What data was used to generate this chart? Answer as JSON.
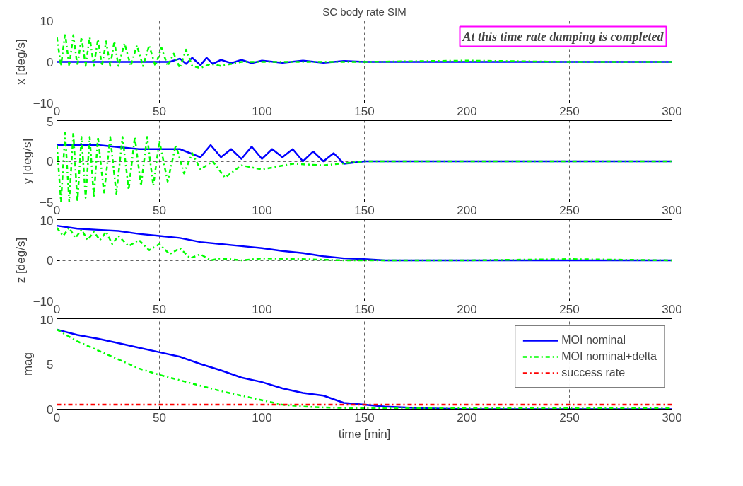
{
  "chart_data": [
    {
      "type": "line",
      "title": "SC body rate SIM",
      "ylabel": "x [deg/s]",
      "xlim": [
        0,
        300
      ],
      "xticks": [
        0,
        50,
        100,
        150,
        200,
        250,
        300
      ],
      "ylim": [
        -10,
        10
      ],
      "yticks": [
        -10,
        0,
        10
      ],
      "grid": true,
      "annotations": [
        "At this time rate damping is completed"
      ],
      "series": [
        {
          "color": "#0000ff",
          "line_style": "solid",
          "x": [
            0,
            20,
            40,
            55,
            60,
            63,
            66,
            70,
            73,
            76,
            80,
            85,
            90,
            95,
            100,
            110,
            120,
            130,
            140,
            150,
            160,
            200,
            300
          ],
          "values": [
            0,
            0,
            0,
            0,
            0.8,
            -0.5,
            1,
            -0.8,
            1,
            -0.5,
            0.5,
            -0.3,
            0.5,
            -0.3,
            0.3,
            -0.2,
            0.3,
            -0.2,
            0.2,
            0,
            0,
            0,
            0
          ]
        },
        {
          "color": "#00ff00",
          "line_style": "dashed",
          "x": [
            0,
            2,
            4,
            6,
            8,
            10,
            12,
            14,
            16,
            18,
            20,
            22,
            24,
            26,
            28,
            30,
            33,
            36,
            39,
            42,
            45,
            48,
            51,
            54,
            57,
            60,
            63,
            66,
            70,
            75,
            80,
            90,
            100,
            120,
            150,
            200,
            250,
            300
          ],
          "values": [
            6,
            -1,
            7,
            -1,
            6.5,
            -1,
            6,
            -1,
            6,
            -1,
            5.5,
            -1,
            5,
            -1,
            5,
            -1,
            4.5,
            -1,
            4,
            -1,
            4,
            -1,
            3.5,
            -1,
            2,
            -1.5,
            3,
            -1,
            -1.5,
            -0.5,
            -1,
            0,
            0,
            0,
            0,
            0.3,
            0,
            0
          ]
        }
      ]
    },
    {
      "type": "line",
      "ylabel": "y [deg/s]",
      "xlim": [
        0,
        300
      ],
      "xticks": [
        0,
        50,
        100,
        150,
        200,
        250,
        300
      ],
      "ylim": [
        -5,
        5
      ],
      "yticks": [
        -5,
        0,
        5
      ],
      "grid": true,
      "series": [
        {
          "color": "#0000ff",
          "line_style": "solid",
          "x": [
            0,
            20,
            40,
            60,
            70,
            75,
            80,
            85,
            90,
            95,
            100,
            105,
            110,
            115,
            120,
            125,
            130,
            135,
            140,
            150,
            160,
            200,
            300
          ],
          "values": [
            2,
            2,
            1.5,
            1.5,
            0.5,
            2,
            0.5,
            1.5,
            0.3,
            1.8,
            0.3,
            1.5,
            0.5,
            1.5,
            0,
            1.2,
            0,
            1,
            -0.3,
            0,
            0,
            0,
            0
          ]
        },
        {
          "color": "#00ff00",
          "line_style": "dashed",
          "x": [
            0,
            2,
            4,
            6,
            8,
            10,
            12,
            14,
            16,
            18,
            20,
            23,
            26,
            29,
            32,
            35,
            38,
            41,
            44,
            47,
            50,
            54,
            58,
            62,
            66,
            70,
            76,
            82,
            90,
            100,
            115,
            130,
            150,
            200,
            300
          ],
          "values": [
            2,
            -5,
            3.5,
            -5,
            3.5,
            -5,
            3,
            -4.5,
            3,
            -4.5,
            3,
            -4,
            3,
            -4,
            3,
            -3.5,
            3,
            -3,
            3,
            -3,
            2.5,
            -2.5,
            2,
            -1.5,
            1,
            -1,
            0,
            -2,
            -0.5,
            -1,
            -0.3,
            -0.5,
            0,
            0,
            0
          ]
        }
      ]
    },
    {
      "type": "line",
      "ylabel": "z [deg/s]",
      "xlim": [
        0,
        300
      ],
      "xticks": [
        0,
        50,
        100,
        150,
        200,
        250,
        300
      ],
      "ylim": [
        -10,
        10
      ],
      "yticks": [
        -10,
        0,
        10
      ],
      "grid": true,
      "series": [
        {
          "color": "#0000ff",
          "line_style": "solid",
          "x": [
            0,
            10,
            20,
            30,
            40,
            50,
            60,
            70,
            80,
            90,
            100,
            110,
            120,
            130,
            140,
            150,
            160,
            180,
            200,
            250,
            300
          ],
          "values": [
            8.5,
            7.8,
            7.5,
            7.2,
            6.5,
            6,
            5.5,
            4.5,
            4,
            3.5,
            3,
            2.3,
            1.8,
            1,
            0.5,
            0.3,
            0,
            0,
            0,
            0,
            0
          ]
        },
        {
          "color": "#00ff00",
          "line_style": "dashed",
          "x": [
            0,
            3,
            6,
            9,
            12,
            15,
            18,
            21,
            24,
            27,
            30,
            35,
            40,
            45,
            50,
            55,
            60,
            65,
            70,
            75,
            80,
            90,
            100,
            120,
            140,
            160,
            200,
            250,
            300
          ],
          "values": [
            8,
            6,
            8,
            5.5,
            7.5,
            5,
            7,
            5,
            7,
            4,
            6,
            3.5,
            5,
            2.5,
            4,
            1.5,
            3,
            0.5,
            1.5,
            0,
            0.5,
            0,
            0.5,
            0.3,
            0,
            0,
            0,
            0.3,
            0
          ]
        }
      ]
    },
    {
      "type": "line",
      "ylabel": "mag",
      "xlabel": "time [min]",
      "xlim": [
        0,
        300
      ],
      "xticks": [
        0,
        50,
        100,
        150,
        200,
        250,
        300
      ],
      "ylim": [
        0,
        10
      ],
      "yticks": [
        0,
        5,
        10
      ],
      "grid": true,
      "legend": "top right",
      "series": [
        {
          "name": "MOI nominal",
          "color": "#0000ff",
          "line_style": "solid",
          "x": [
            0,
            10,
            20,
            30,
            40,
            50,
            60,
            70,
            80,
            90,
            100,
            110,
            120,
            130,
            140,
            150,
            160,
            180,
            200,
            250,
            300
          ],
          "values": [
            8.8,
            8.2,
            7.8,
            7.3,
            6.8,
            6.3,
            5.8,
            5,
            4.3,
            3.5,
            3,
            2.3,
            1.8,
            1.5,
            0.7,
            0.5,
            0.3,
            0.1,
            0,
            0,
            0
          ]
        },
        {
          "name": "MOI nominal+delta",
          "color": "#00ff00",
          "line_style": "dashed",
          "x": [
            0,
            10,
            20,
            30,
            40,
            50,
            60,
            70,
            80,
            90,
            100,
            110,
            120,
            130,
            150,
            200,
            300
          ],
          "values": [
            8.8,
            7.5,
            6.5,
            5.5,
            4.5,
            3.8,
            3.2,
            2.6,
            2,
            1.5,
            1,
            0.5,
            0.3,
            0.2,
            0.1,
            0.1,
            0.1
          ]
        },
        {
          "name": "success rate",
          "color": "#ff0000",
          "line_style": "dashed",
          "x": [
            0,
            300
          ],
          "values": [
            0.5,
            0.5
          ]
        }
      ]
    }
  ]
}
